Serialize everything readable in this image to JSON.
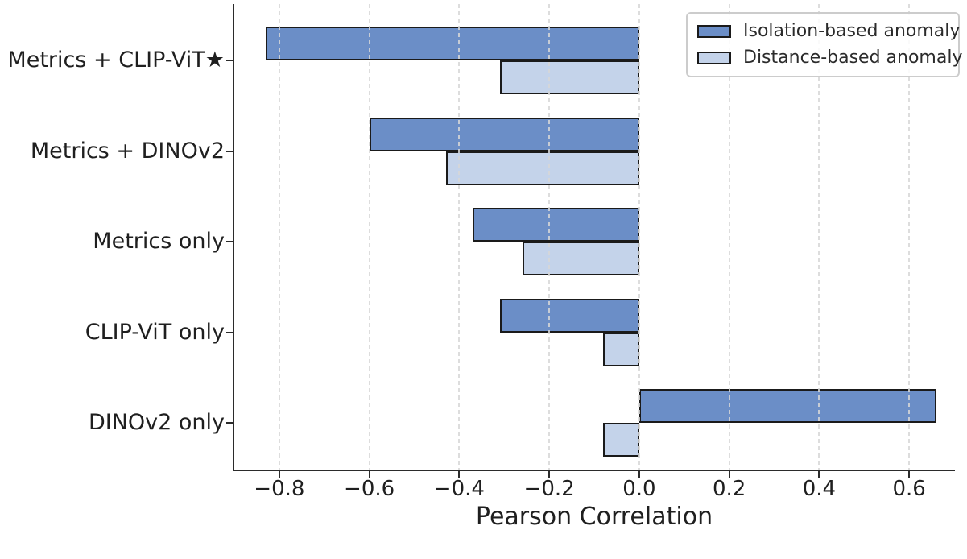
{
  "figure": {
    "title": "",
    "xlabel": "Pearson Correlation"
  },
  "chart_data": {
    "type": "bar",
    "orientation": "horizontal",
    "categories": [
      "Metrics + CLIP-ViT★",
      "Metrics + DINOv2",
      "Metrics only",
      "CLIP-ViT only",
      "DINOv2 only"
    ],
    "series": [
      {
        "name": "Isolation-based anomaly",
        "color": "#6B8EC7",
        "values": [
          -0.83,
          -0.6,
          -0.37,
          -0.31,
          0.66
        ]
      },
      {
        "name": "Distance-based anomaly",
        "color": "#C4D3EA",
        "values": [
          -0.31,
          -0.43,
          -0.26,
          -0.08,
          -0.08
        ]
      }
    ],
    "xlabel": "Pearson Correlation",
    "ylabel": "",
    "xlim": [
      -0.9,
      0.7
    ],
    "x_ticks": [
      {
        "value": -0.8,
        "label": "−0.8"
      },
      {
        "value": -0.6,
        "label": "−0.6"
      },
      {
        "value": -0.4,
        "label": "−0.4"
      },
      {
        "value": -0.2,
        "label": "−0.2"
      },
      {
        "value": 0.0,
        "label": "0.0"
      },
      {
        "value": 0.2,
        "label": "0.2"
      },
      {
        "value": 0.4,
        "label": "0.4"
      },
      {
        "value": 0.6,
        "label": "0.6"
      }
    ],
    "grid": "vertical dashed gridlines, drawn above bars",
    "legend_position": "upper right",
    "legend_entries": [
      "Isolation-based anomaly",
      "Distance-based anomaly"
    ],
    "bar_edge_color": "#1a1a1a"
  },
  "colors": {
    "isolation_bar": "#6B8EC7",
    "distance_bar": "#C4D3EA",
    "bar_edge": "#1a1a1a",
    "gridline": "#d7d7d7",
    "spine": "#2b2b2b",
    "legend_border": "#cccccc",
    "text": "#1f1f1f"
  }
}
